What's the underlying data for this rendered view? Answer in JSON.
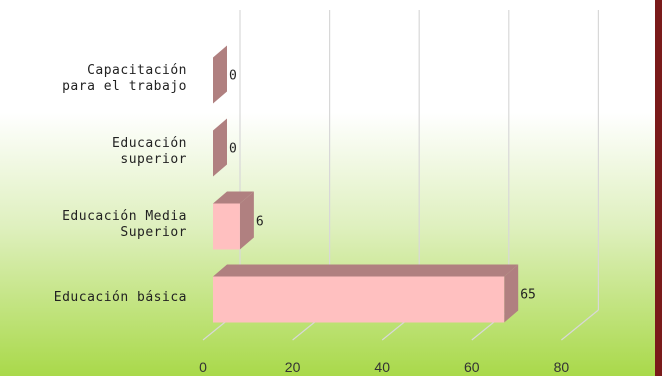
{
  "chart_data": {
    "type": "bar3d_horizontal",
    "categories": [
      "Capacitación\npara el trabajo",
      "Educación\nsuperior",
      "Educación Media\nSuperior",
      "Educación básica"
    ],
    "values": [
      0,
      0,
      6,
      65
    ],
    "color": "#ffc0c0",
    "side_color": "#b08080",
    "xlim": [
      0,
      80
    ],
    "xticks": [
      0,
      20,
      40,
      60,
      80
    ],
    "grid": true
  }
}
